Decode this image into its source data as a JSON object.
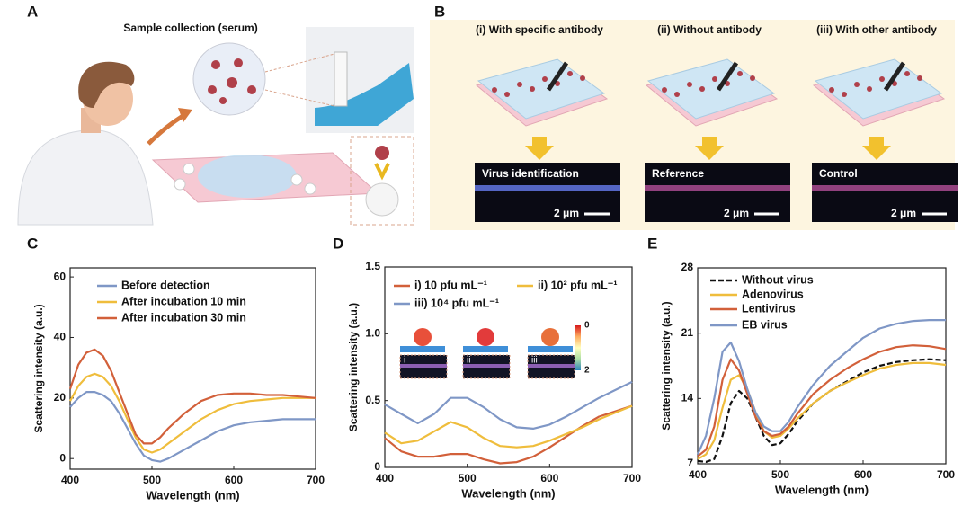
{
  "panel_a": {
    "letter": "A",
    "label": "Sample collection (serum)"
  },
  "panel_b": {
    "letter": "B",
    "conditions": [
      {
        "title": "(i) With specific antibody",
        "caption": "Virus identification",
        "scale": "2 μm"
      },
      {
        "title": "(ii) Without antibody",
        "caption": "Reference",
        "scale": "2 μm"
      },
      {
        "title": "(iii) With other antibody",
        "caption": "Control",
        "scale": "2 μm"
      }
    ]
  },
  "chart_data": [
    {
      "type": "line",
      "panel": "C",
      "xlabel": "Wavelength (nm)",
      "ylabel": "Scattering intensity (a.u.)",
      "xlim": [
        400,
        700
      ],
      "xticks": [
        400,
        500,
        600,
        700
      ],
      "ylim": [
        -3.5,
        63
      ],
      "yticks": [
        0,
        20,
        40,
        60
      ],
      "x": [
        400,
        410,
        420,
        430,
        440,
        450,
        460,
        470,
        480,
        490,
        500,
        510,
        520,
        540,
        560,
        580,
        600,
        620,
        640,
        660,
        680,
        700
      ],
      "series": [
        {
          "name": "Before detection",
          "color": "#7f97c6",
          "values": [
            17,
            20,
            22,
            22,
            21,
            19,
            15,
            10,
            5,
            1,
            -0.5,
            -1,
            0,
            3,
            6,
            9,
            11,
            12,
            12.5,
            13,
            13,
            13
          ]
        },
        {
          "name": "After incubation 10 min",
          "color": "#efbd3c",
          "values": [
            19,
            24,
            27,
            28,
            27,
            24,
            19,
            13,
            7,
            3,
            2,
            3,
            5,
            9,
            13,
            16,
            18,
            19,
            19.5,
            20,
            20,
            20
          ]
        },
        {
          "name": "After incubation 30 min",
          "color": "#d2603a",
          "values": [
            23,
            31,
            35,
            36,
            34,
            29,
            22,
            15,
            8,
            5,
            5,
            7,
            10,
            15,
            19,
            21,
            21.5,
            21.5,
            21,
            21,
            20.5,
            20
          ]
        }
      ]
    },
    {
      "type": "line",
      "panel": "D",
      "xlabel": "Wavelength (nm)",
      "ylabel": "Scattering intensity (a.u.)",
      "xlim": [
        400,
        700
      ],
      "xticks": [
        400,
        500,
        600,
        700
      ],
      "ylim": [
        0,
        1.5
      ],
      "yticks": [
        0,
        0.5,
        {
          "value": 1,
          "label": "1.0"
        },
        1.5
      ],
      "x": [
        400,
        420,
        440,
        460,
        480,
        500,
        520,
        540,
        560,
        580,
        600,
        620,
        640,
        660,
        680,
        700
      ],
      "series": [
        {
          "name": "i) 10 pfu mL⁻¹",
          "color": "#d2603a",
          "values": [
            0.22,
            0.12,
            0.08,
            0.08,
            0.1,
            0.1,
            0.06,
            0.03,
            0.04,
            0.08,
            0.15,
            0.23,
            0.31,
            0.38,
            0.42,
            0.46
          ]
        },
        {
          "name": "ii) 10² pfu mL⁻¹",
          "color": "#efbd3c",
          "values": [
            0.26,
            0.18,
            0.2,
            0.27,
            0.34,
            0.3,
            0.22,
            0.16,
            0.15,
            0.16,
            0.2,
            0.25,
            0.3,
            0.36,
            0.41,
            0.46
          ]
        },
        {
          "name": "iii) 10⁴ pfu mL⁻¹",
          "color": "#7f97c6",
          "values": [
            0.47,
            0.4,
            0.33,
            0.4,
            0.52,
            0.52,
            0.45,
            0.36,
            0.3,
            0.29,
            0.32,
            0.38,
            0.45,
            0.52,
            0.58,
            0.64
          ]
        }
      ],
      "inset": {
        "labels": [
          "i",
          "ii",
          "iii"
        ],
        "colorbar_ticks": [
          0,
          2
        ]
      }
    },
    {
      "type": "line",
      "panel": "E",
      "xlabel": "Wavelength (nm)",
      "ylabel": "Scattering intensity (a.u.)",
      "xlim": [
        400,
        700
      ],
      "xticks": [
        400,
        500,
        600,
        700
      ],
      "ylim": [
        7,
        28
      ],
      "yticks": [
        7,
        14,
        21,
        28
      ],
      "x": [
        400,
        410,
        420,
        430,
        440,
        450,
        460,
        470,
        480,
        490,
        500,
        510,
        520,
        540,
        560,
        580,
        600,
        620,
        640,
        660,
        680,
        700
      ],
      "series": [
        {
          "name": "Without virus",
          "color": "#111111",
          "line_style": "dashed",
          "values": [
            7.3,
            7.2,
            7.5,
            10,
            13.5,
            14.8,
            14,
            12,
            10,
            9,
            9.2,
            10.2,
            11.5,
            13.5,
            14.8,
            15.8,
            16.8,
            17.5,
            17.9,
            18.1,
            18.2,
            18.1
          ]
        },
        {
          "name": "Adenovirus",
          "color": "#efbd3c",
          "values": [
            7.5,
            8,
            9.5,
            13,
            16,
            16.5,
            15,
            12.5,
            10.5,
            9.8,
            10,
            10.8,
            11.8,
            13.5,
            14.8,
            15.7,
            16.5,
            17.2,
            17.6,
            17.8,
            17.8,
            17.6
          ]
        },
        {
          "name": "Lentivirus",
          "color": "#d2603a",
          "values": [
            7.8,
            8.5,
            11,
            16,
            18.2,
            17,
            14.5,
            12,
            10.5,
            10,
            10.2,
            11,
            12.3,
            14.5,
            16,
            17.2,
            18.2,
            19,
            19.5,
            19.7,
            19.6,
            19.3
          ]
        },
        {
          "name": "EB virus",
          "color": "#7f97c6",
          "values": [
            8,
            10,
            14,
            19,
            20,
            18,
            15,
            12.5,
            11,
            10.5,
            10.5,
            11.5,
            13,
            15.5,
            17.5,
            19,
            20.5,
            21.5,
            22,
            22.3,
            22.4,
            22.4
          ]
        }
      ]
    }
  ]
}
